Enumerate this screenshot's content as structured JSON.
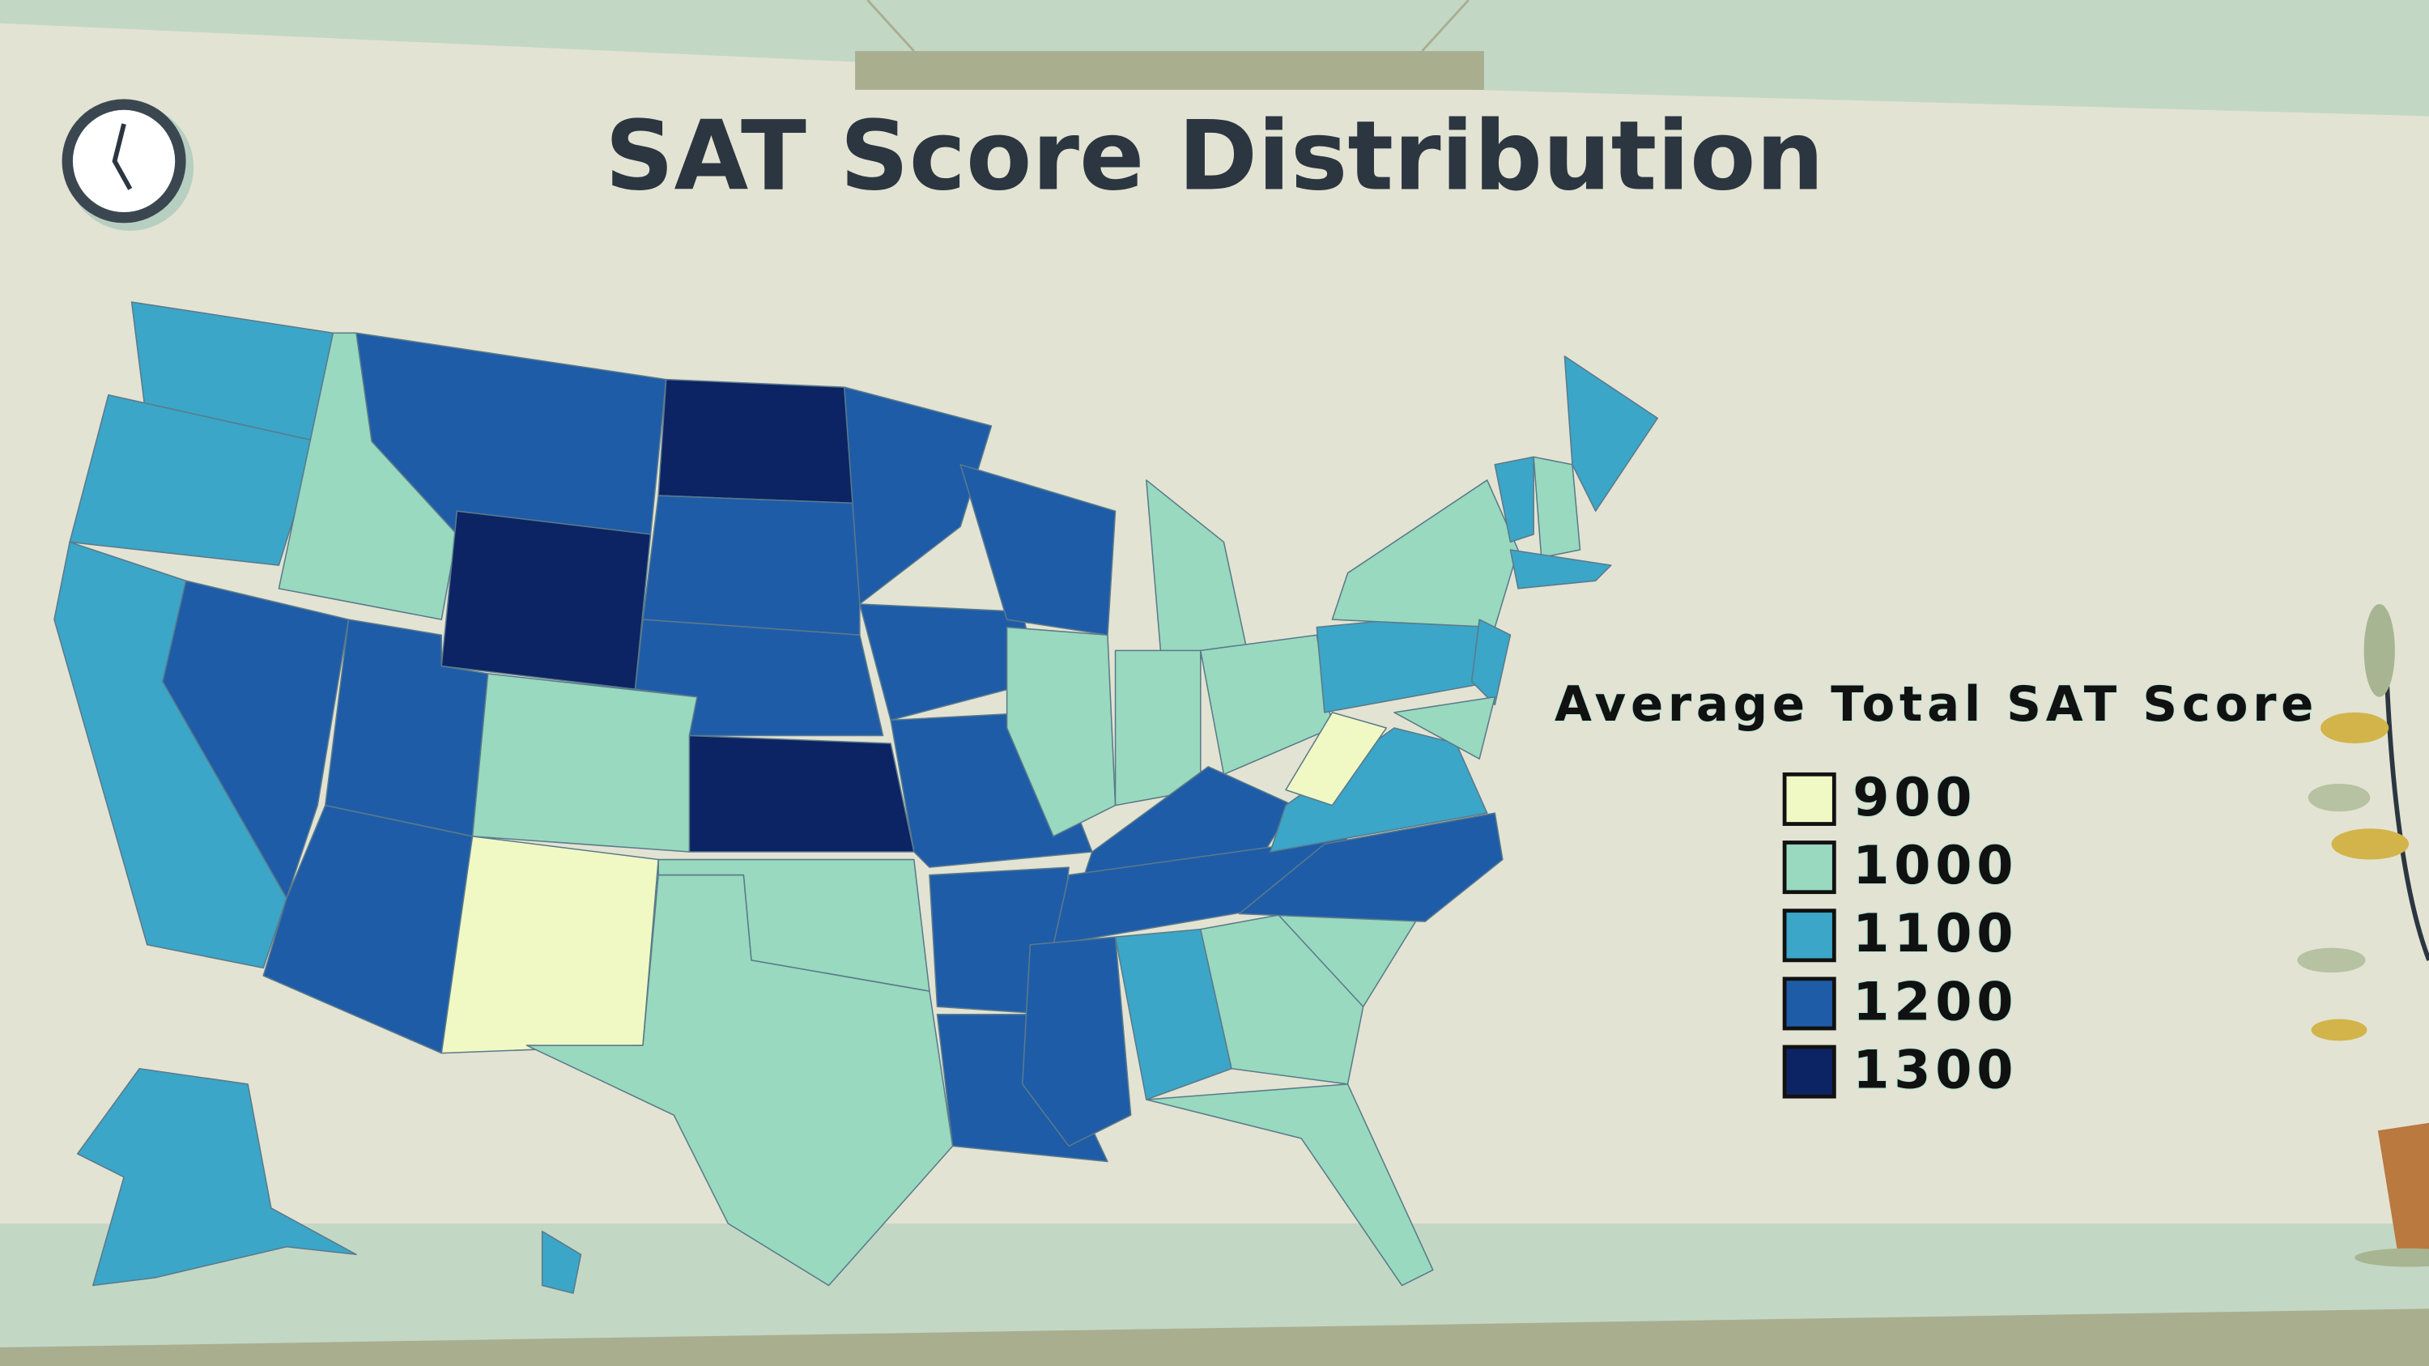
{
  "header": {
    "title": "SAT Score Distribution"
  },
  "legend": {
    "title": "Average Total SAT Score",
    "items": [
      {
        "value": 900,
        "color": "#f0f9c4"
      },
      {
        "value": 1000,
        "color": "#98d9bf"
      },
      {
        "value": 1100,
        "color": "#3ba6c8"
      },
      {
        "value": 1200,
        "color": "#1f5ca8"
      },
      {
        "value": 1300,
        "color": "#0c2463"
      }
    ]
  },
  "map": {
    "regions": [
      1100,
      1100,
      1100,
      1200,
      1000,
      1200,
      1300,
      1200,
      1200,
      1000,
      900,
      1300,
      1200,
      1200,
      1300,
      1000,
      1000,
      1200,
      1200,
      1200,
      1200,
      1200,
      1200,
      1000,
      1000,
      1000,
      1000,
      1200,
      1200,
      1200,
      1100,
      1000,
      1000,
      1000,
      1200,
      1100,
      900,
      1100,
      1000,
      1100,
      1100,
      1000,
      1100,
      1100,
      1000,
      1100,
      1100
    ]
  }
}
